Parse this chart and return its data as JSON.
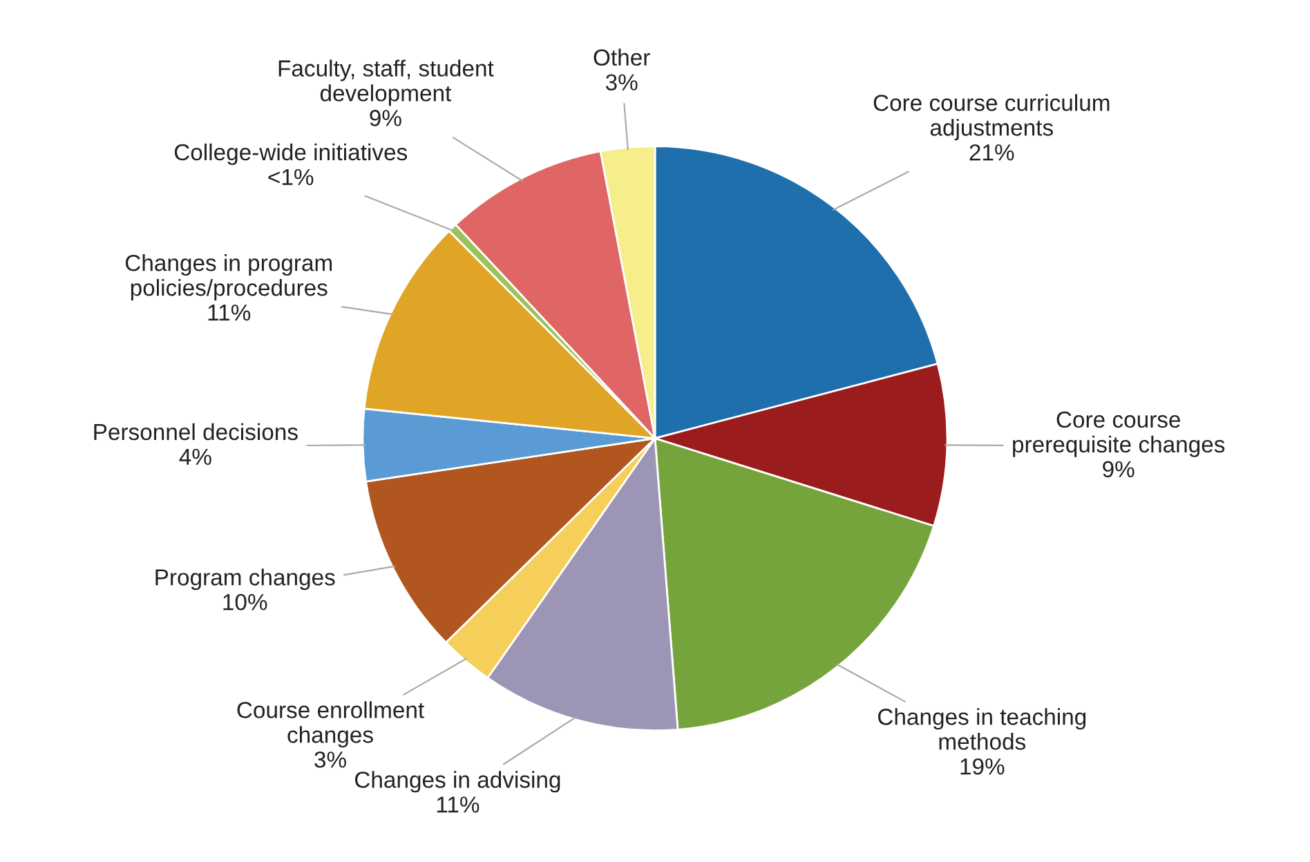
{
  "chart_data": {
    "type": "pie",
    "categories": [
      "Core course curriculum\nadjustments",
      "Core course\nprerequisite changes",
      "Changes in teaching\nmethods",
      "Changes in advising",
      "Course enrollment\nchanges",
      "Program changes",
      "Personnel decisions",
      "Changes in program\npolicies/procedures",
      "College-wide initiatives",
      "Faculty, staff, student\ndevelopment",
      "Other"
    ],
    "values": [
      21,
      9,
      19,
      11,
      3,
      10,
      4,
      11,
      0.5,
      9,
      3
    ],
    "value_labels": [
      "21%",
      "9%",
      "19%",
      "11%",
      "3%",
      "10%",
      "4%",
      "11%",
      "<1%",
      "9%",
      "3%"
    ],
    "colors": [
      "#1f6fad",
      "#9b1c1c",
      "#76a43c",
      "#9d95b5",
      "#f6cf5a",
      "#b0561e",
      "#5b9bd5",
      "#e0a526",
      "#9ac45a",
      "#e06666",
      "#f5ee8a"
    ],
    "legend": false
  }
}
